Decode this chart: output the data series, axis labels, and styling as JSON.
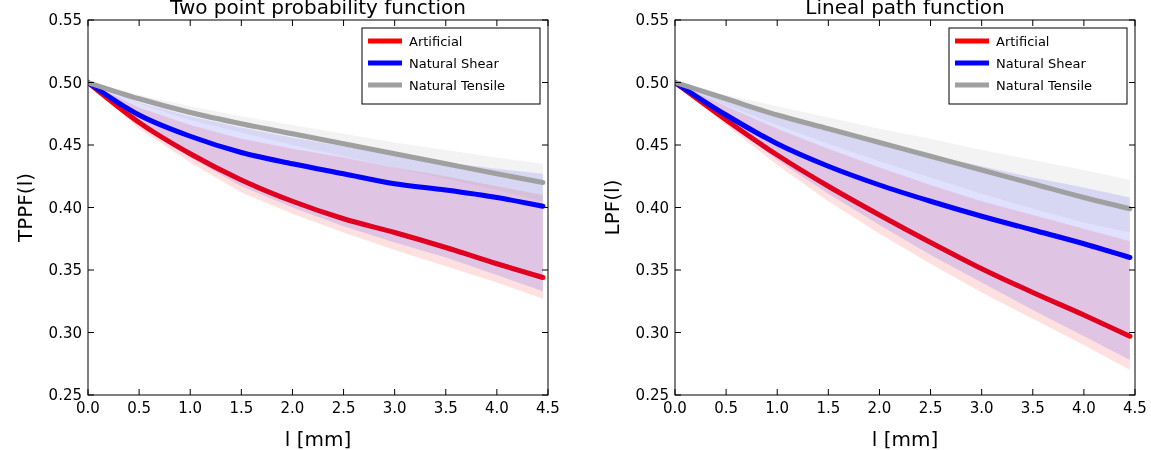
{
  "chart_data": [
    {
      "type": "line",
      "title": "Two point probability function",
      "xlabel": "l [mm]",
      "ylabel": "TPPF(l)",
      "x": [
        0,
        0.5,
        1,
        1.5,
        2,
        2.5,
        3,
        3.5,
        4,
        4.45
      ],
      "xlim": [
        0,
        4.5
      ],
      "xticks": [
        {
          "value": 0,
          "label": "0.0"
        },
        0.5,
        {
          "value": 1,
          "label": "1.0"
        },
        1.5,
        {
          "value": 2,
          "label": "2.0"
        },
        2.5,
        {
          "value": 3,
          "label": "3.0"
        },
        3.5,
        {
          "value": 4,
          "label": "4.0"
        },
        4.5
      ],
      "ylim": [
        0.25,
        0.55
      ],
      "yticks": [
        0.25,
        {
          "value": 0.3,
          "label": "0.30"
        },
        0.35,
        {
          "value": 0.4,
          "label": "0.40"
        },
        0.45,
        {
          "value": 0.5,
          "label": "0.50"
        },
        0.55
      ],
      "legend": "top right",
      "series": [
        {
          "name": "Artificial",
          "color": "#ff0000",
          "values": [
            0.5,
            0.468,
            0.443,
            0.422,
            0.405,
            0.391,
            0.38,
            0.368,
            0.355,
            0.344
          ],
          "lower": [
            0.5,
            0.463,
            0.436,
            0.412,
            0.395,
            0.38,
            0.366,
            0.353,
            0.34,
            0.327
          ],
          "upper": [
            0.5,
            0.48,
            0.466,
            0.455,
            0.447,
            0.44,
            0.432,
            0.425,
            0.417,
            0.41
          ]
        },
        {
          "name": "Natural Shear",
          "color": "#0000ff",
          "values": [
            0.5,
            0.474,
            0.457,
            0.444,
            0.435,
            0.427,
            0.419,
            0.414,
            0.408,
            0.401
          ],
          "lower": [
            0.5,
            0.466,
            0.44,
            0.417,
            0.4,
            0.385,
            0.372,
            0.36,
            0.346,
            0.333
          ],
          "upper": [
            0.5,
            0.484,
            0.473,
            0.464,
            0.456,
            0.449,
            0.442,
            0.436,
            0.431,
            0.427
          ]
        },
        {
          "name": "Natural Tensile",
          "color": "#a0a0a0",
          "values": [
            0.5,
            0.487,
            0.476,
            0.467,
            0.459,
            0.451,
            0.443,
            0.435,
            0.427,
            0.42
          ],
          "lower": [
            0.5,
            0.483,
            0.47,
            0.46,
            0.45,
            0.441,
            0.432,
            0.423,
            0.414,
            0.405
          ],
          "upper": [
            0.5,
            0.49,
            0.481,
            0.473,
            0.466,
            0.459,
            0.452,
            0.446,
            0.44,
            0.435
          ]
        }
      ]
    },
    {
      "type": "line",
      "title": "Lineal path function",
      "xlabel": "l [mm]",
      "ylabel": "LPF(l)",
      "x": [
        0,
        0.5,
        1,
        1.5,
        2,
        2.5,
        3,
        3.5,
        4,
        4.45
      ],
      "xlim": [
        0,
        4.5
      ],
      "xticks": [
        {
          "value": 0,
          "label": "0.0"
        },
        0.5,
        {
          "value": 1,
          "label": "1.0"
        },
        1.5,
        {
          "value": 2,
          "label": "2.0"
        },
        2.5,
        {
          "value": 3,
          "label": "3.0"
        },
        3.5,
        {
          "value": 4,
          "label": "4.0"
        },
        4.5
      ],
      "ylim": [
        0.25,
        0.55
      ],
      "yticks": [
        0.25,
        {
          "value": 0.3,
          "label": "0.30"
        },
        0.35,
        {
          "value": 0.4,
          "label": "0.40"
        },
        0.45,
        {
          "value": 0.5,
          "label": "0.50"
        },
        0.55
      ],
      "legend": "top right",
      "series": [
        {
          "name": "Artificial",
          "color": "#ff0000",
          "values": [
            0.5,
            0.47,
            0.442,
            0.417,
            0.394,
            0.372,
            0.351,
            0.332,
            0.314,
            0.297
          ],
          "lower": [
            0.5,
            0.466,
            0.434,
            0.405,
            0.379,
            0.355,
            0.332,
            0.311,
            0.29,
            0.27
          ],
          "upper": [
            0.5,
            0.481,
            0.463,
            0.447,
            0.432,
            0.418,
            0.405,
            0.394,
            0.383,
            0.373
          ]
        },
        {
          "name": "Natural Shear",
          "color": "#0000ff",
          "values": [
            0.5,
            0.474,
            0.451,
            0.433,
            0.418,
            0.405,
            0.393,
            0.382,
            0.371,
            0.36
          ],
          "lower": [
            0.5,
            0.468,
            0.438,
            0.411,
            0.386,
            0.362,
            0.34,
            0.318,
            0.297,
            0.278
          ],
          "upper": [
            0.5,
            0.485,
            0.472,
            0.461,
            0.451,
            0.442,
            0.433,
            0.424,
            0.416,
            0.408
          ]
        },
        {
          "name": "Natural Tensile",
          "color": "#a0a0a0",
          "values": [
            0.5,
            0.487,
            0.474,
            0.463,
            0.452,
            0.441,
            0.43,
            0.419,
            0.408,
            0.399
          ],
          "lower": [
            0.5,
            0.482,
            0.466,
            0.451,
            0.437,
            0.424,
            0.411,
            0.399,
            0.388,
            0.38
          ],
          "upper": [
            0.5,
            0.49,
            0.481,
            0.472,
            0.463,
            0.455,
            0.446,
            0.438,
            0.43,
            0.422
          ]
        }
      ]
    }
  ]
}
